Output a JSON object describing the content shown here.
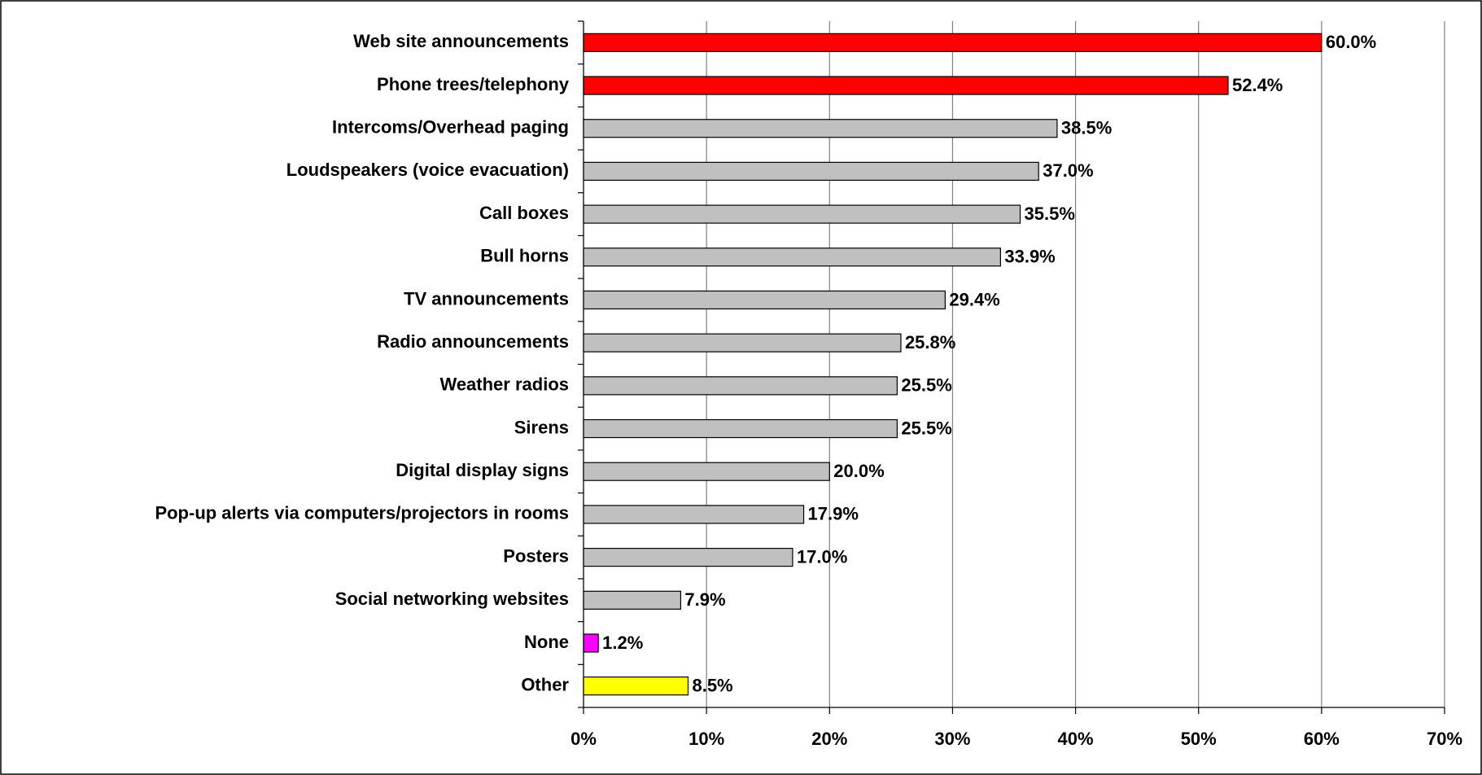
{
  "chart_data": {
    "type": "bar",
    "orientation": "horizontal",
    "categories": [
      "Web site announcements",
      "Phone trees/telephony",
      "Intercoms/Overhead paging",
      "Loudspeakers (voice evacuation)",
      "Call boxes",
      "Bull horns",
      "TV announcements",
      "Radio announcements",
      "Weather radios",
      "Sirens",
      "Digital display signs",
      "Pop-up alerts via computers/projectors in rooms",
      "Posters",
      "Social networking websites",
      "None",
      "Other"
    ],
    "values": [
      60.0,
      52.4,
      38.5,
      37.0,
      35.5,
      33.9,
      29.4,
      25.8,
      25.5,
      25.5,
      20.0,
      17.9,
      17.0,
      7.9,
      1.2,
      8.5
    ],
    "value_labels": [
      "60.0%",
      "52.4%",
      "38.5%",
      "37.0%",
      "35.5%",
      "33.9%",
      "29.4%",
      "25.8%",
      "25.5%",
      "25.5%",
      "20.0%",
      "17.9%",
      "17.0%",
      "7.9%",
      "1.2%",
      "8.5%"
    ],
    "colors": [
      "#ff0000",
      "#ff0000",
      "#c0c0c0",
      "#c0c0c0",
      "#c0c0c0",
      "#c0c0c0",
      "#c0c0c0",
      "#c0c0c0",
      "#c0c0c0",
      "#c0c0c0",
      "#c0c0c0",
      "#c0c0c0",
      "#c0c0c0",
      "#c0c0c0",
      "#ff00ff",
      "#ffff00"
    ],
    "xlim": [
      0,
      70
    ],
    "xticks": [
      {
        "value": 0,
        "label": "0%"
      },
      {
        "value": 10,
        "label": "10%"
      },
      {
        "value": 20,
        "label": "20%"
      },
      {
        "value": 30,
        "label": "30%"
      },
      {
        "value": 40,
        "label": "40%"
      },
      {
        "value": 50,
        "label": "50%"
      },
      {
        "value": 60,
        "label": "60%"
      },
      {
        "value": 70,
        "label": "70%"
      }
    ],
    "grid": true
  }
}
